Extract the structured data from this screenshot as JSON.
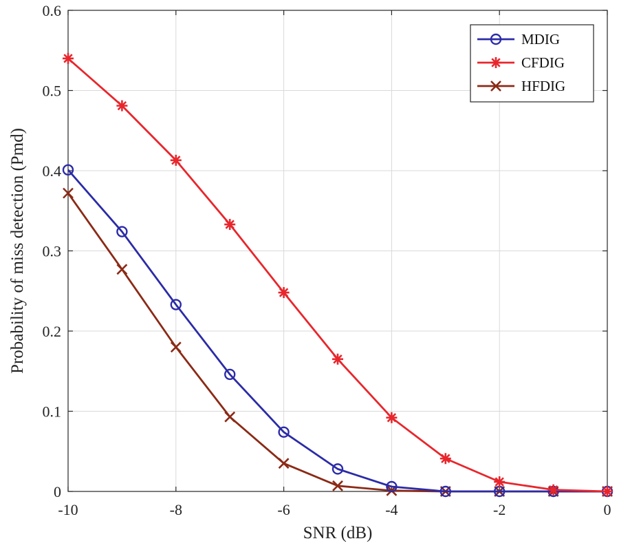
{
  "chart_data": {
    "type": "line",
    "title": "",
    "xlabel": "SNR (dB)",
    "ylabel": "Probability of miss detection (Pmd)",
    "xlim": [
      -10,
      0
    ],
    "ylim": [
      0,
      0.6
    ],
    "x_ticks": [
      "-10",
      "-8",
      "-6",
      "-4",
      "-2",
      "0"
    ],
    "y_ticks": [
      "0",
      "0.1",
      "0.2",
      "0.3",
      "0.4",
      "0.5",
      "0.6"
    ],
    "grid": true,
    "legend_position": "top-right",
    "x": [
      -10,
      -9,
      -8,
      -7,
      -6,
      -5,
      -4,
      -3,
      -2,
      -1,
      0
    ],
    "series": [
      {
        "name": "MDIG",
        "color": "#2b2ba8",
        "marker": "circle",
        "values": [
          0.401,
          0.324,
          0.233,
          0.146,
          0.074,
          0.028,
          0.006,
          0.0,
          0.0,
          0.0,
          0.0
        ]
      },
      {
        "name": "CFDIG",
        "color": "#e8262c",
        "marker": "asterisk",
        "values": [
          0.54,
          0.481,
          0.413,
          0.333,
          0.248,
          0.165,
          0.092,
          0.041,
          0.012,
          0.002,
          0.0
        ]
      },
      {
        "name": "HFDIG",
        "color": "#8b2a16",
        "marker": "x",
        "values": [
          0.372,
          0.277,
          0.18,
          0.093,
          0.035,
          0.007,
          0.001,
          0.0,
          0.0,
          0.0,
          0.0
        ]
      }
    ]
  }
}
